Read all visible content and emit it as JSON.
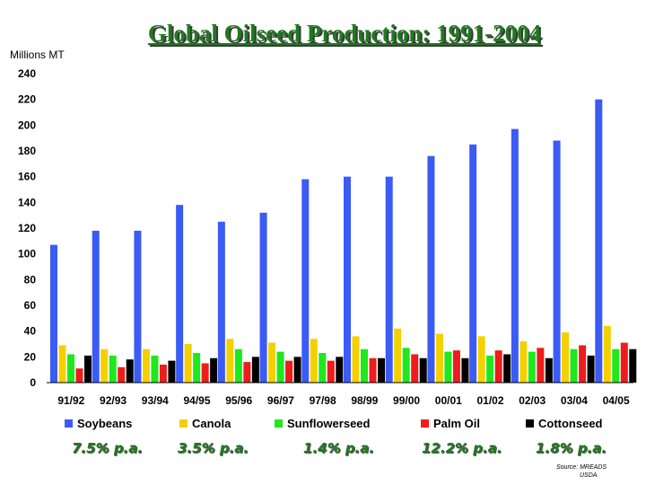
{
  "title": "Global Oilseed Production: 1991-2004",
  "chart_data": {
    "type": "bar",
    "title": "Global Oilseed Production: 1991-2004",
    "ylabel": "Millions MT",
    "xlabel": "",
    "ylim": [
      0,
      240
    ],
    "yticks": [
      0,
      20,
      40,
      60,
      80,
      100,
      120,
      140,
      160,
      180,
      200,
      220,
      240
    ],
    "grid": false,
    "legend": "bottom",
    "categories": [
      "91/92",
      "92/93",
      "93/94",
      "94/95",
      "95/96",
      "96/97",
      "97/98",
      "98/99",
      "99/00",
      "00/01",
      "01/02",
      "02/03",
      "03/04",
      "04/05"
    ],
    "series": [
      {
        "name": "Soybeans",
        "color": "#3b5bf5",
        "values": [
          107,
          118,
          118,
          138,
          125,
          132,
          158,
          160,
          160,
          176,
          185,
          197,
          188,
          220
        ]
      },
      {
        "name": "Canola",
        "color": "#f5d000",
        "values": [
          29,
          26,
          26,
          30,
          34,
          31,
          34,
          36,
          42,
          38,
          36,
          32,
          39,
          44
        ]
      },
      {
        "name": "Sunflowerseed",
        "color": "#1ee81e",
        "values": [
          22,
          21,
          21,
          23,
          26,
          24,
          23,
          26,
          27,
          24,
          21,
          24,
          26,
          26
        ]
      },
      {
        "name": "Palm Oil",
        "color": "#ee1c1c",
        "values": [
          11,
          12,
          14,
          15,
          16,
          17,
          17,
          19,
          22,
          25,
          25,
          27,
          29,
          31
        ]
      },
      {
        "name": "Cottonseed",
        "color": "#000000",
        "values": [
          21,
          18,
          17,
          19,
          20,
          20,
          20,
          19,
          19,
          19,
          22,
          19,
          21,
          26
        ]
      }
    ]
  },
  "growth_rates": [
    "7.5% p.a.",
    "3.5% p.a.",
    "1.4% p.a.",
    "12.2% p.a.",
    "1.8% p.a."
  ],
  "source": {
    "line1": "Source:  MREADS",
    "line2": "USDA"
  }
}
